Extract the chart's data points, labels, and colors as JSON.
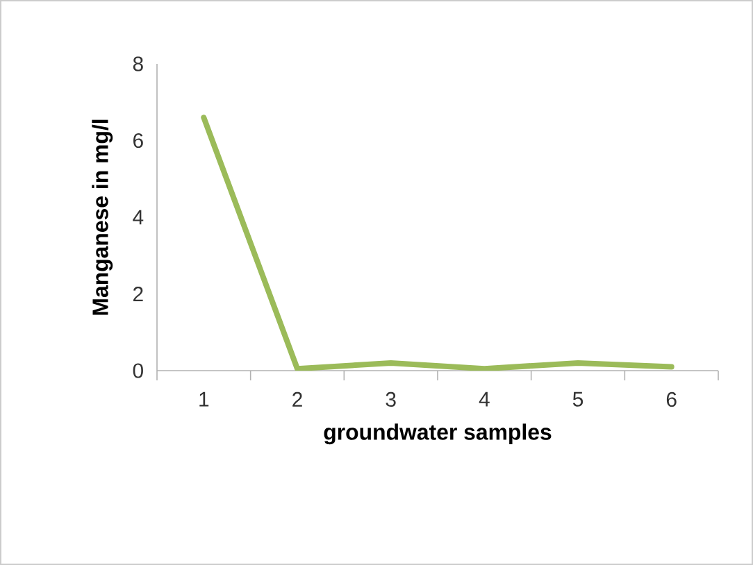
{
  "chart_data": {
    "type": "line",
    "xlabel": "groundwater samples",
    "ylabel": "Manganese in mg/l",
    "categories": [
      "1",
      "2",
      "3",
      "4",
      "5",
      "6"
    ],
    "series": [
      {
        "color": "#9bbb59",
        "values": [
          6.6,
          0.05,
          0.2,
          0.05,
          0.2,
          0.1
        ]
      }
    ],
    "ylim": [
      0,
      8
    ],
    "yticks": [
      0,
      2,
      4,
      6,
      8
    ]
  }
}
